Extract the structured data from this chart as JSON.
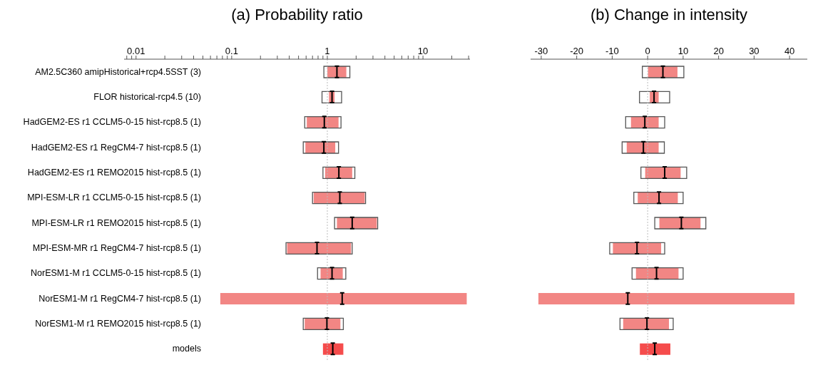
{
  "chart_data": [
    {
      "type": "bar",
      "orientation": "horizontal",
      "title": "(a) Probability ratio",
      "log": "x",
      "categories": [
        "AM2.5C360 amipHistorical+rcp4.5SST (3)",
        "FLOR historical-rcp4.5 (10)",
        "HadGEM2-ES r1 CCLM5-0-15 hist-rcp8.5 (1)",
        "HadGEM2-ES r1 RegCM4-7 hist-rcp8.5 (1)",
        "HadGEM2-ES r1 REMO2015 hist-rcp8.5 (1)",
        "MPI-ESM-LR r1 CCLM5-0-15 hist-rcp8.5 (1)",
        "MPI-ESM-LR r1 REMO2015 hist-rcp8.5 (1)",
        "MPI-ESM-MR r1 RegCM4-7 hist-rcp8.5 (1)",
        "NorESM1-M r1 CCLM5-0-15 hist-rcp8.5 (1)",
        "NorESM1-M r1 RegCM4-7 hist-rcp8.5 (1)",
        "NorESM1-M r1 REMO2015 hist-rcp8.5 (1)",
        "models"
      ],
      "series": [
        {
          "type": "bar",
          "colors": [
            "#f28684",
            "#f28684",
            "#f28684",
            "#f28684",
            "#f28684",
            "#f28684",
            "#f28684",
            "#f28684",
            "#f28684",
            "#f28684",
            "#f28684",
            "#f54c4c"
          ],
          "base": [
            1.0,
            1.04,
            0.61,
            0.59,
            0.95,
            0.72,
            1.26,
            0.38,
            0.85,
            0.076,
            0.58,
            0.9
          ],
          "values": [
            0.58,
            0.15,
            0.7,
            0.62,
            0.87,
            1.74,
            2.03,
            1.39,
            0.6,
            28.6,
            0.79,
            0.57
          ]
        },
        {
          "type": "bar",
          "color": "#555555",
          "base": [
            0.92,
            0.88,
            0.58,
            0.56,
            0.9,
            0.7,
            1.19,
            0.37,
            0.79,
            null,
            0.56,
            null
          ],
          "values": [
            0.8,
            0.53,
            0.81,
            0.75,
            1.04,
            1.81,
            2.17,
            1.45,
            0.77,
            null,
            0.91,
            null
          ]
        },
        {
          "type": "scatter",
          "color": "#000000",
          "values": [
            1.26,
            1.12,
            0.93,
            0.92,
            1.32,
            1.35,
            1.82,
            0.78,
            1.12,
            1.43,
            0.99,
            1.14
          ]
        }
      ],
      "xlim": [
        0.0075,
        31
      ],
      "xticks": [
        {
          "value": 0.008,
          "label": null
        },
        {
          "value": 0.009,
          "label": null
        },
        0.01,
        {
          "value": 0.02,
          "label": null
        },
        {
          "value": 0.03,
          "label": null
        },
        {
          "value": 0.04,
          "label": null
        },
        {
          "value": 0.05,
          "label": null
        },
        {
          "value": 0.06,
          "label": null
        },
        {
          "value": 0.07,
          "label": null
        },
        {
          "value": 0.08,
          "label": null
        },
        {
          "value": 0.09,
          "label": null
        },
        0.1,
        {
          "value": 0.2,
          "label": null
        },
        {
          "value": 0.3,
          "label": null
        },
        {
          "value": 0.4,
          "label": null
        },
        {
          "value": 0.5,
          "label": null
        },
        {
          "value": 0.6,
          "label": null
        },
        {
          "value": 0.7,
          "label": null
        },
        {
          "value": 0.8,
          "label": null
        },
        {
          "value": 0.9,
          "label": null
        },
        1,
        {
          "value": 2,
          "label": null
        },
        {
          "value": 3,
          "label": null
        },
        {
          "value": 4,
          "label": null
        },
        {
          "value": 5,
          "label": null
        },
        {
          "value": 6,
          "label": null
        },
        {
          "value": 7,
          "label": null
        },
        {
          "value": 8,
          "label": null
        },
        {
          "value": 9,
          "label": null
        },
        10,
        {
          "value": 20,
          "label": null
        },
        {
          "value": 30,
          "label": null
        }
      ],
      "ref_lines": [
        {
          "axis": "x",
          "value": 1,
          "color": "#bbbbbb",
          "line_style": "dotted"
        }
      ]
    },
    {
      "type": "bar",
      "orientation": "horizontal",
      "title": "(b) Change in intensity",
      "tick_labels": "x",
      "categories": [
        null,
        null,
        null,
        null,
        null,
        null,
        null,
        null,
        null,
        null,
        null,
        null
      ],
      "series": [
        {
          "type": "bar",
          "colors": [
            "#f28684",
            "#f28684",
            "#f28684",
            "#f28684",
            "#f28684",
            "#f28684",
            "#f28684",
            "#f28684",
            "#f28684",
            "#f28684",
            "#f28684",
            "#f54c4c"
          ],
          "base": [
            0.1,
            0.6,
            -4.7,
            -5.9,
            -0.7,
            -2.8,
            3.3,
            -9.8,
            -3.3,
            -30.8,
            -6.9,
            -2.2
          ],
          "values": [
            8.3,
            2.5,
            7.8,
            9.0,
            10.0,
            11.3,
            11.6,
            13.6,
            12.0,
            72.2,
            12.9,
            8.6
          ]
        },
        {
          "type": "bar",
          "color": "#555555",
          "base": [
            -1.5,
            -2.3,
            -6.2,
            -7.2,
            -1.9,
            -3.9,
            2.0,
            -10.7,
            -4.4,
            null,
            -7.8,
            null
          ],
          "values": [
            11.7,
            8.5,
            11.0,
            11.9,
            12.9,
            13.9,
            14.4,
            15.5,
            14.4,
            null,
            15.0,
            null
          ]
        },
        {
          "type": "scatter",
          "color": "#000000",
          "values": [
            4.3,
            1.8,
            -0.8,
            -1.2,
            4.8,
            3.2,
            9.5,
            -3.0,
            2.5,
            -5.6,
            -0.2,
            2.0
          ]
        }
      ],
      "xlim": [
        -33,
        45
      ],
      "xticks": [
        -30,
        -20,
        -10,
        0,
        10,
        20,
        30,
        40
      ],
      "ref_lines": [
        {
          "axis": "x",
          "value": 0,
          "color": "#bbbbbb",
          "line_style": "dotted"
        }
      ]
    }
  ]
}
